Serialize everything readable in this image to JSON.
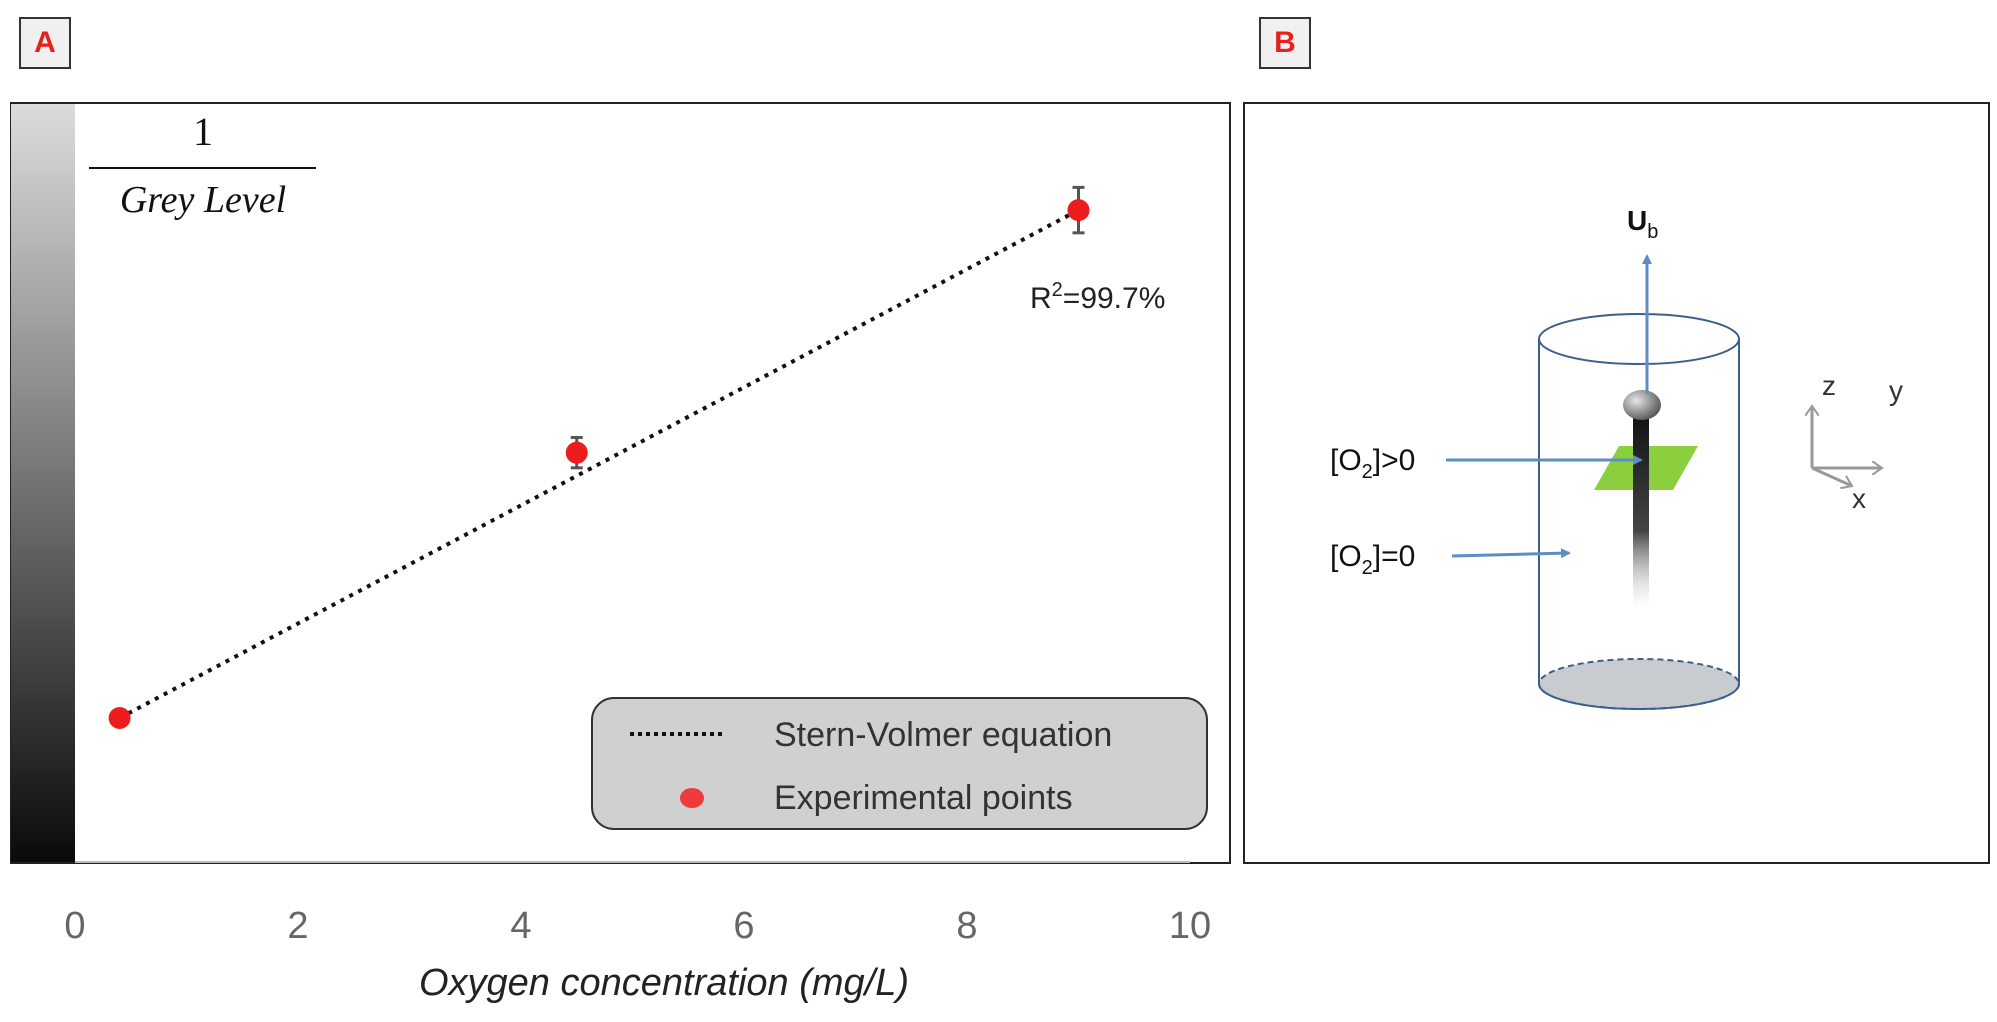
{
  "panel_a": {
    "label": "A"
  },
  "panel_b": {
    "label": "B"
  },
  "chart_data": {
    "type": "scatter",
    "title": "",
    "ylabel_numerator": "1",
    "ylabel_denominator": "Grey Level",
    "xlabel": "Oxygen concentration (mg/L)",
    "xlim": [
      0,
      10
    ],
    "xticks": [
      "0",
      "2",
      "4",
      "6",
      "8",
      "10"
    ],
    "ylim": [
      0,
      1
    ],
    "series": [
      {
        "name": "Experimental points",
        "kind": "points",
        "color": "#ee1c1c",
        "x": [
          0.4,
          4.5,
          9.0
        ],
        "y": [
          0.19,
          0.54,
          0.86
        ],
        "err": [
          0.01,
          0.02,
          0.03
        ]
      },
      {
        "name": "Stern-Volmer equation",
        "kind": "dotted-line",
        "color": "#111111",
        "x": [
          0.4,
          9.0
        ],
        "y": [
          0.19,
          0.86
        ]
      }
    ],
    "annotation": {
      "r2_label": "R",
      "r2_sup": "2",
      "r2_value": "=99.7%"
    },
    "legend": {
      "position": "bottom-right",
      "entries": [
        "Stern-Volmer equation",
        "Experimental points"
      ]
    }
  },
  "diagram": {
    "velocity_label": "U",
    "velocity_sub": "b",
    "o2_pos_prefix": "[O",
    "o2_pos_sub": "2",
    "o2_pos_suffix": "]>0",
    "o2_zero_prefix": "[O",
    "o2_zero_sub": "2",
    "o2_zero_suffix": "]=0",
    "axis_z": "z",
    "axis_y": "y",
    "axis_x": "x",
    "arrow_color": "#5b8fc4",
    "cylinder_color": "#3d5f8a",
    "sheet_color": "#8ccf3e"
  }
}
